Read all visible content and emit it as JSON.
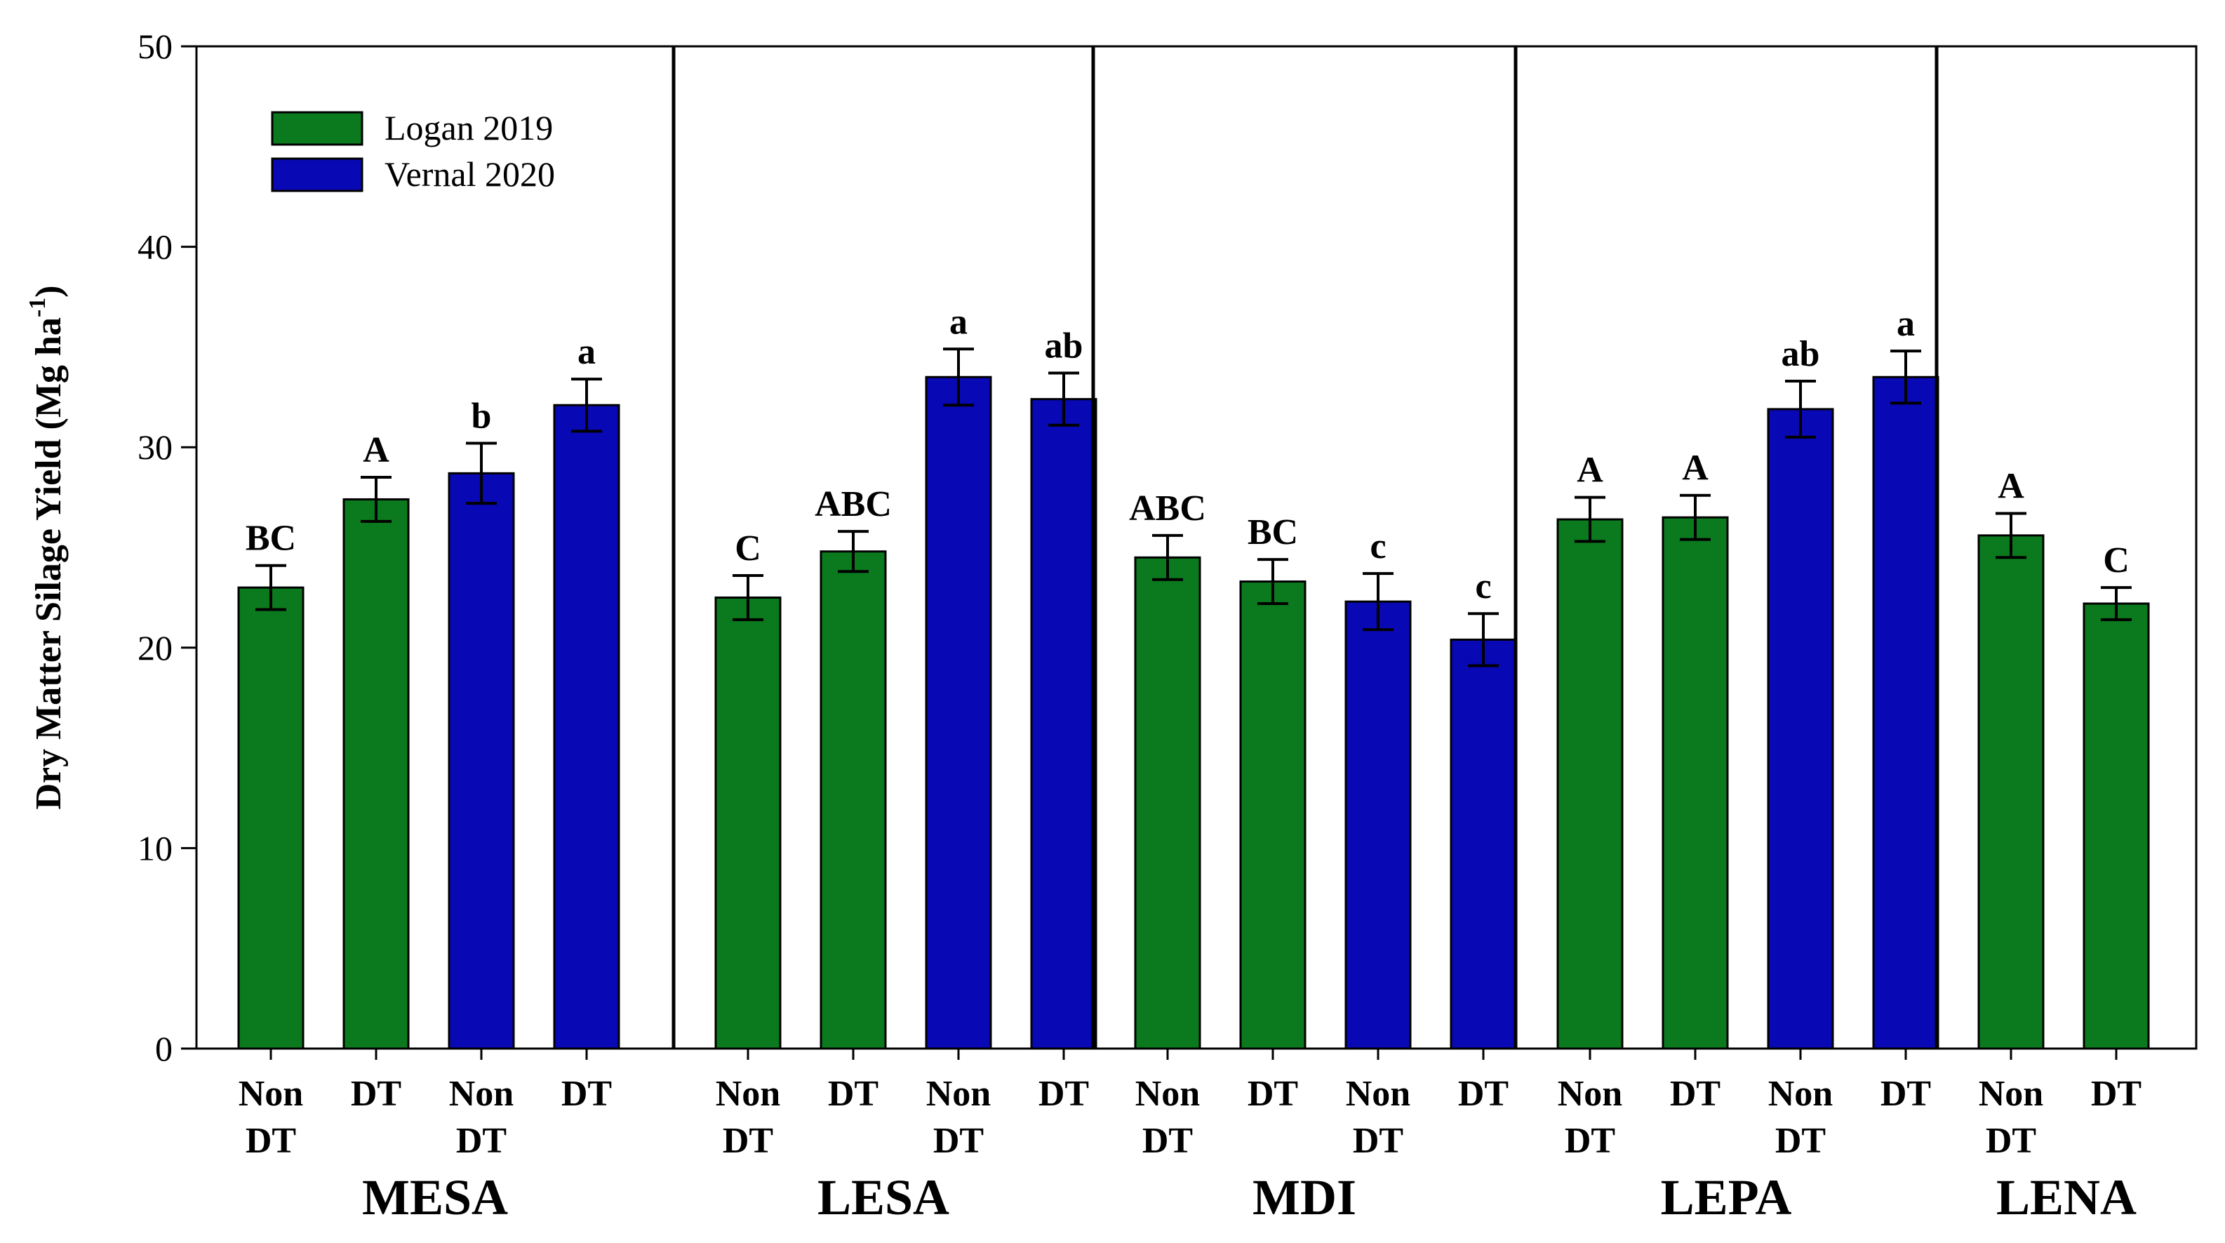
{
  "colors": {
    "logan": "#0b7a1e",
    "vernal": "#0808b4",
    "axis": "#000000",
    "background": "#ffffff"
  },
  "chart_data": {
    "type": "bar",
    "title": "",
    "xlabel": "",
    "ylabel": "Dry Matter Silage Yield (Mg ha",
    "ylabel_unit_superscript": "-1",
    "ylabel_unit_close": ")",
    "ylim": [
      0,
      50
    ],
    "yticks": [
      "0",
      "10",
      "20",
      "30",
      "40",
      "50"
    ],
    "grid": false,
    "legend_position": "top-left",
    "series": [
      {
        "name": "Logan 2019",
        "color_key": "logan"
      },
      {
        "name": "Vernal 2020",
        "color_key": "vernal"
      }
    ],
    "groups": [
      {
        "name": "MESA",
        "bars": [
          {
            "series": 0,
            "label_top": "Non",
            "label_bottom": "DT",
            "value": 23.0,
            "error": 1.1,
            "sig": "BC"
          },
          {
            "series": 0,
            "label_top": "DT",
            "label_bottom": "",
            "value": 27.4,
            "error": 1.1,
            "sig": "A"
          },
          {
            "series": 1,
            "label_top": "Non",
            "label_bottom": "DT",
            "value": 28.7,
            "error": 1.5,
            "sig": "b"
          },
          {
            "series": 1,
            "label_top": "DT",
            "label_bottom": "",
            "value": 32.1,
            "error": 1.3,
            "sig": "a"
          }
        ]
      },
      {
        "name": "LESA",
        "bars": [
          {
            "series": 0,
            "label_top": "Non",
            "label_bottom": "DT",
            "value": 22.5,
            "error": 1.1,
            "sig": "C"
          },
          {
            "series": 0,
            "label_top": "DT",
            "label_bottom": "",
            "value": 24.8,
            "error": 1.0,
            "sig": "ABC"
          },
          {
            "series": 1,
            "label_top": "Non",
            "label_bottom": "DT",
            "value": 33.5,
            "error": 1.4,
            "sig": "a"
          },
          {
            "series": 1,
            "label_top": "DT",
            "label_bottom": "",
            "value": 32.4,
            "error": 1.3,
            "sig": "ab"
          }
        ]
      },
      {
        "name": "MDI",
        "bars": [
          {
            "series": 0,
            "label_top": "Non",
            "label_bottom": "DT",
            "value": 24.5,
            "error": 1.1,
            "sig": "ABC"
          },
          {
            "series": 0,
            "label_top": "DT",
            "label_bottom": "",
            "value": 23.3,
            "error": 1.1,
            "sig": "BC"
          },
          {
            "series": 1,
            "label_top": "Non",
            "label_bottom": "DT",
            "value": 22.3,
            "error": 1.4,
            "sig": "c"
          },
          {
            "series": 1,
            "label_top": "DT",
            "label_bottom": "",
            "value": 20.4,
            "error": 1.3,
            "sig": "c"
          }
        ]
      },
      {
        "name": "LEPA",
        "bars": [
          {
            "series": 0,
            "label_top": "Non",
            "label_bottom": "DT",
            "value": 26.4,
            "error": 1.1,
            "sig": "A"
          },
          {
            "series": 0,
            "label_top": "DT",
            "label_bottom": "",
            "value": 26.5,
            "error": 1.1,
            "sig": "A"
          },
          {
            "series": 1,
            "label_top": "Non",
            "label_bottom": "DT",
            "value": 31.9,
            "error": 1.4,
            "sig": "ab"
          },
          {
            "series": 1,
            "label_top": "DT",
            "label_bottom": "",
            "value": 33.5,
            "error": 1.3,
            "sig": "a"
          }
        ]
      },
      {
        "name": "LENA",
        "bars": [
          {
            "series": 0,
            "label_top": "Non",
            "label_bottom": "DT",
            "value": 25.6,
            "error": 1.1,
            "sig": "A"
          },
          {
            "series": 0,
            "label_top": "DT",
            "label_bottom": "",
            "value": 22.2,
            "error": 0.8,
            "sig": "C"
          }
        ]
      }
    ]
  }
}
